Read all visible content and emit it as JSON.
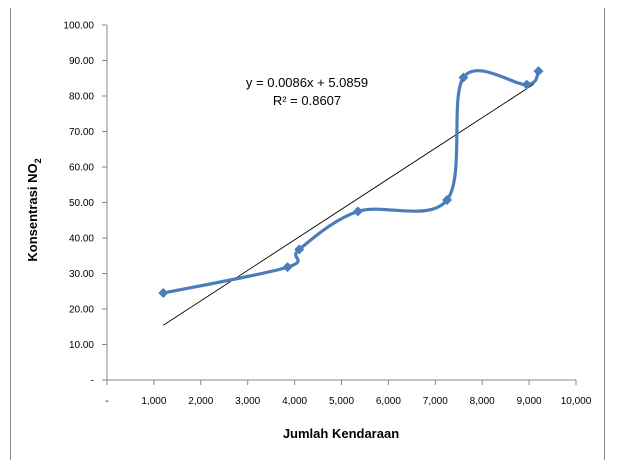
{
  "chart_data": {
    "type": "scatter",
    "title": "",
    "xlabel": "Jumlah Kendaraan",
    "ylabel": "Konsentrasi NO",
    "ylabel_subscript": "2",
    "xlim": [
      0,
      10000
    ],
    "ylim": [
      0,
      100
    ],
    "x_ticks": [
      0,
      1000,
      2000,
      3000,
      4000,
      5000,
      6000,
      7000,
      8000,
      9000,
      10000
    ],
    "x_tick_labels": [
      "-",
      "1,000",
      "2,000",
      "3,000",
      "4,000",
      "5,000",
      "6,000",
      "7,000",
      "8,000",
      "9,000",
      "10,000"
    ],
    "y_ticks": [
      0,
      10,
      20,
      30,
      40,
      50,
      60,
      70,
      80,
      90,
      100
    ],
    "y_tick_labels": [
      "-",
      "10.00",
      "20.00",
      "30.00",
      "40.00",
      "50.00",
      "60.00",
      "70.00",
      "80.00",
      "90.00",
      "100.00"
    ],
    "grid": false,
    "legend": "none",
    "series": [
      {
        "color": "#4a7ebb",
        "marker": "diamond",
        "smoothed": true,
        "x": [
          1200,
          3850,
          4100,
          5350,
          7250,
          7600,
          8950,
          9200
        ],
        "y": [
          24.5,
          31.8,
          36.8,
          47.5,
          50.7,
          85.2,
          83.2,
          87.0
        ]
      }
    ],
    "trendline": {
      "type": "linear",
      "slope": 0.0086,
      "intercept": 5.0859,
      "x_range": [
        1200,
        9100
      ],
      "color": "#000000",
      "equation_label": "y = 0.0086x + 5.0859",
      "r2_label": "R² = 0.8607"
    }
  }
}
